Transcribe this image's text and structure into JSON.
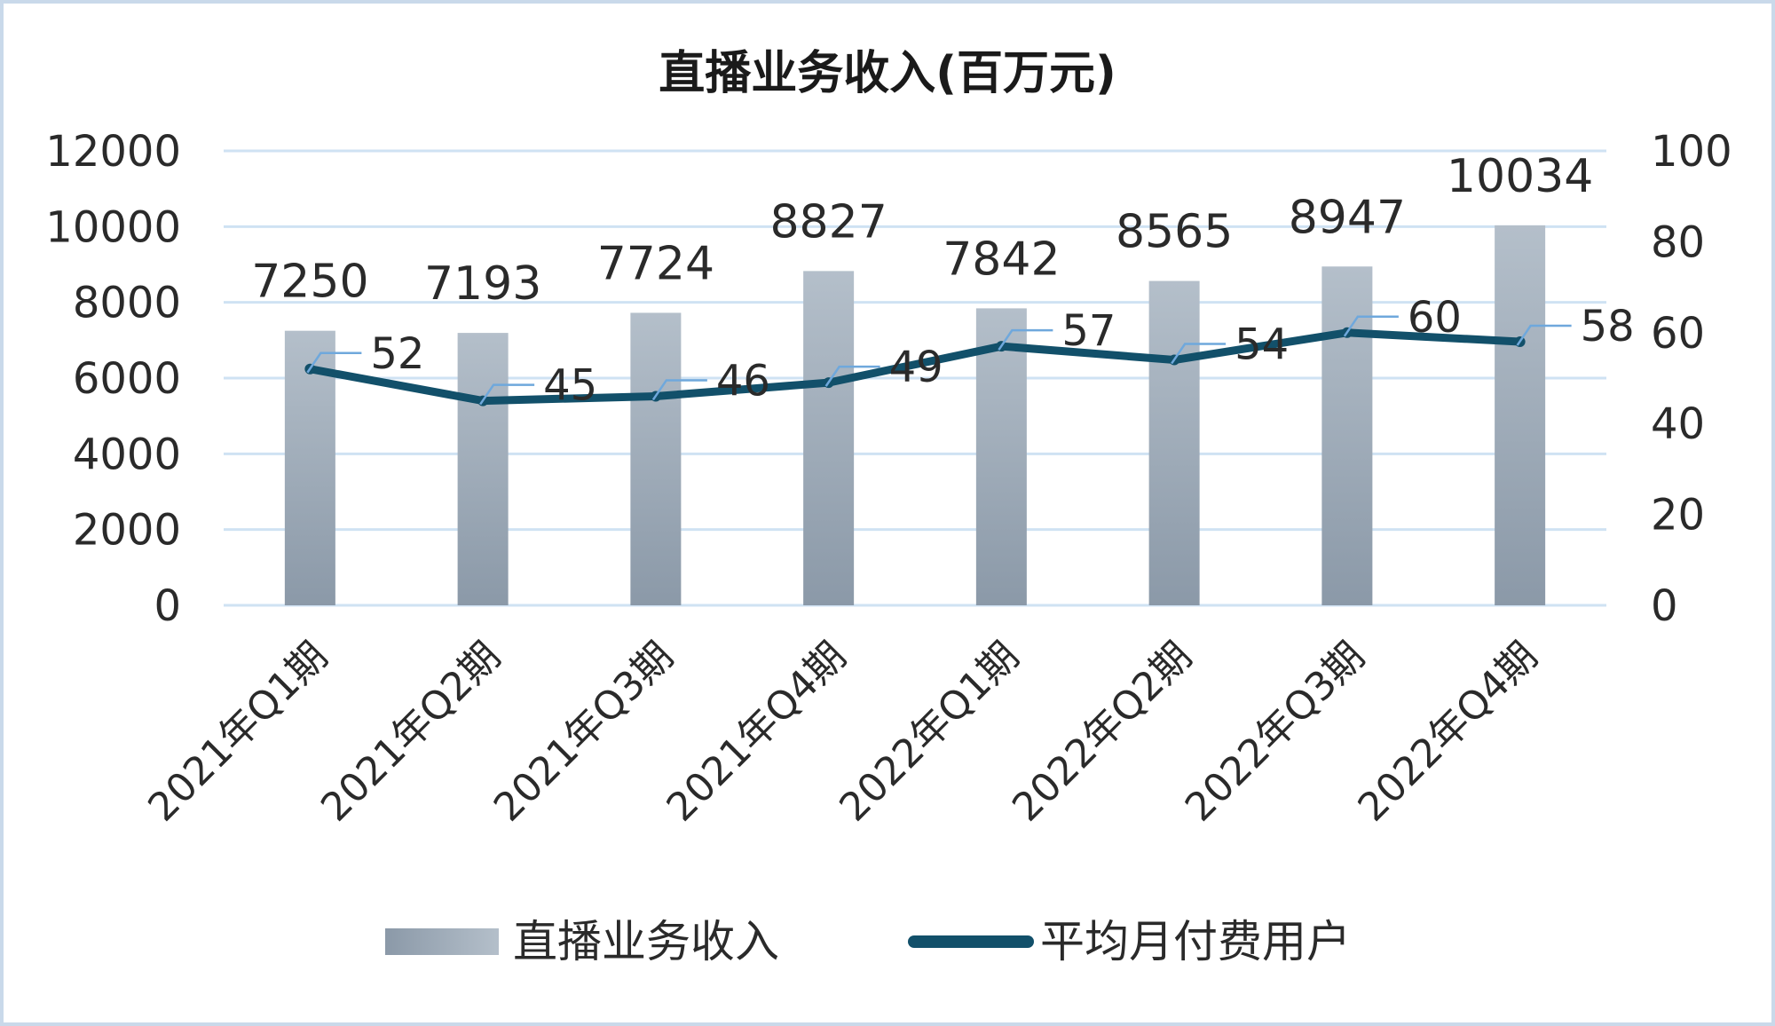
{
  "chart_data": {
    "type": "bar",
    "title": "直播业务收入(百万元)",
    "categories": [
      "2021年Q1期",
      "2021年Q2期",
      "2021年Q3期",
      "2021年Q4期",
      "2022年Q1期",
      "2022年Q2期",
      "2022年Q3期",
      "2022年Q4期"
    ],
    "series": [
      {
        "name": "直播业务收入",
        "type": "bar",
        "axis": "left",
        "values": [
          7250,
          7193,
          7724,
          8827,
          7842,
          8565,
          8947,
          10034
        ],
        "color_top": "#b4bfca",
        "color_bottom": "#8b99a8"
      },
      {
        "name": "平均月付费用户",
        "type": "line",
        "axis": "right",
        "values": [
          52,
          45,
          46,
          49,
          57,
          54,
          60,
          58
        ],
        "color": "#12506a"
      }
    ],
    "ylim_left": [
      0,
      12000
    ],
    "yticks_left": [
      "0",
      "2000",
      "4000",
      "6000",
      "8000",
      "10000",
      "12000"
    ],
    "ylim_right": [
      0,
      100
    ],
    "yticks_right": [
      "0",
      "20",
      "40",
      "60",
      "80",
      "100"
    ],
    "grid": true,
    "gridline_color": "#cfe2f3",
    "leader_line_color": "#6fa8dc",
    "legend_position": "bottom"
  }
}
